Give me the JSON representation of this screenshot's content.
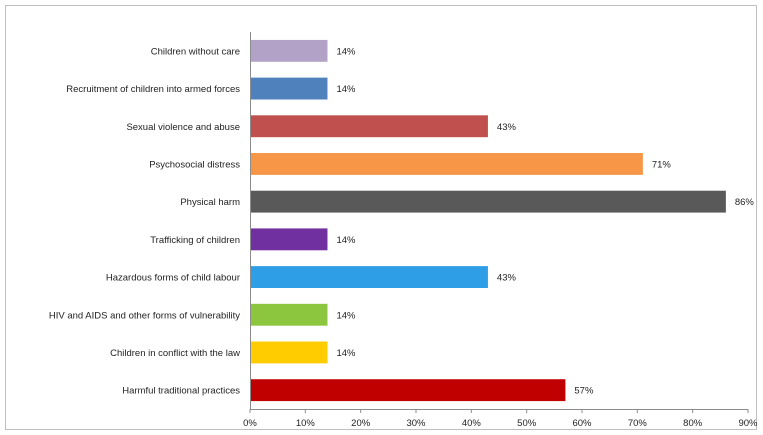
{
  "chart_data": {
    "type": "bar",
    "orientation": "horizontal",
    "title": "",
    "xlabel": "",
    "ylabel": "",
    "xlim": [
      0,
      90
    ],
    "x_ticks": [
      0,
      10,
      20,
      30,
      40,
      50,
      60,
      70,
      80,
      90
    ],
    "x_tick_labels": [
      "0%",
      "10%",
      "20%",
      "30%",
      "40%",
      "50%",
      "60%",
      "70%",
      "80%",
      "90%"
    ],
    "grid": false,
    "legend": "none",
    "categories": [
      "Children without care",
      "Recruitment of children into armed forces",
      "Sexual violence and abuse",
      "Psychosocial distress",
      "Physical harm",
      "Trafficking of children",
      "Hazardous forms of child labour",
      "HIV and AIDS and other forms of vulnerability",
      "Children in conflict with the law",
      "Harmful traditional practices"
    ],
    "values": [
      14,
      14,
      43,
      71,
      86,
      14,
      43,
      14,
      14,
      57
    ],
    "value_labels": [
      "14%",
      "14%",
      "43%",
      "71%",
      "86%",
      "14%",
      "43%",
      "14%",
      "14%",
      "57%"
    ],
    "colors": [
      "#b3a2c7",
      "#4f81bd",
      "#c0504d",
      "#f79646",
      "#595959",
      "#7030a0",
      "#2e9ee6",
      "#8cc63f",
      "#ffcc00",
      "#c00000"
    ]
  }
}
